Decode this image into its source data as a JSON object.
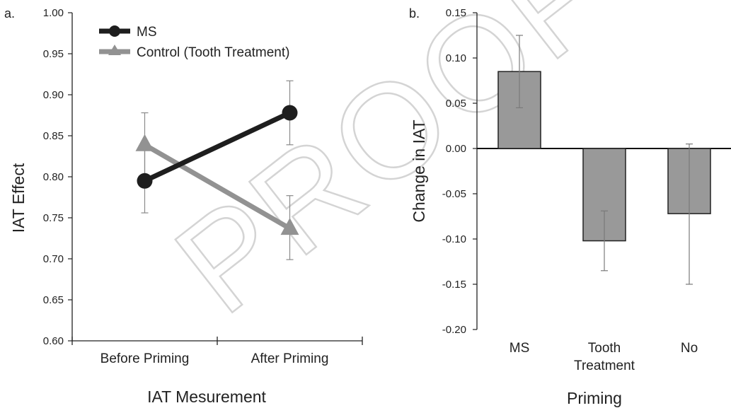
{
  "watermark": "PROOF",
  "chart_data": [
    {
      "type": "line",
      "panel_label": "a.",
      "xlabel": "IAT Mesurement",
      "ylabel": "IAT Effect",
      "categories": [
        "Before Priming",
        "After Priming"
      ],
      "ylim": [
        0.6,
        1.0
      ],
      "yticks": [
        "0.60",
        "0.65",
        "0.70",
        "0.75",
        "0.80",
        "0.85",
        "0.90",
        "0.95",
        "1.00"
      ],
      "legend_position": "top-left",
      "series": [
        {
          "name": "MS",
          "values": [
            0.795,
            0.878
          ],
          "err_low": [
            0.756,
            0.839
          ],
          "err_high": [
            0.834,
            0.917
          ],
          "color": "#1e1e1e",
          "marker": "circle"
        },
        {
          "name": "Control (Tooth Treatment)",
          "values": [
            0.839,
            0.737
          ],
          "err_low": [
            0.8,
            0.699
          ],
          "err_high": [
            0.878,
            0.777
          ],
          "color": "#929292",
          "marker": "triangle"
        }
      ]
    },
    {
      "type": "bar",
      "panel_label": "b.",
      "xlabel": "Priming",
      "ylabel": "Change in IAT",
      "categories": [
        "MS",
        "Tooth\nTreatment",
        "No"
      ],
      "values": [
        0.085,
        -0.102,
        -0.072
      ],
      "err_low": [
        0.045,
        -0.135,
        -0.15
      ],
      "err_high": [
        0.125,
        -0.069,
        0.005
      ],
      "ylim": [
        -0.2,
        0.15
      ],
      "yticks": [
        "-0.20",
        "-0.15",
        "-0.10",
        "-0.05",
        "0.00",
        "0.05",
        "0.10",
        "0.15"
      ],
      "bar_color": "#999999",
      "grid": false
    }
  ]
}
